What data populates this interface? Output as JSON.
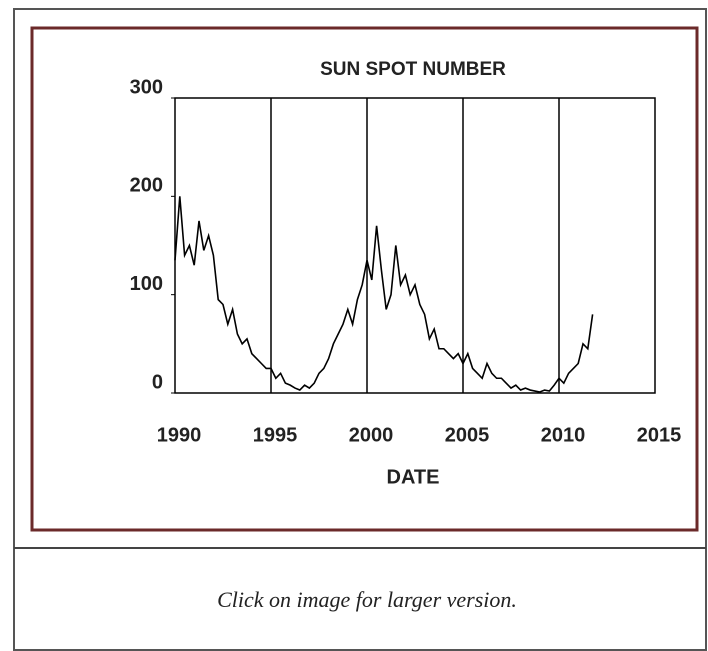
{
  "chart_data": {
    "type": "line",
    "title": "SUN SPOT NUMBER",
    "x_label": "DATE",
    "x": [
      1990,
      1990.25,
      1990.5,
      1990.75,
      1991,
      1991.25,
      1991.5,
      1991.75,
      1992,
      1992.25,
      1992.5,
      1992.75,
      1993,
      1993.25,
      1993.5,
      1993.75,
      1994,
      1994.25,
      1994.5,
      1994.75,
      1995,
      1995.25,
      1995.5,
      1995.75,
      1996,
      1996.25,
      1996.5,
      1996.75,
      1997,
      1997.25,
      1997.5,
      1997.75,
      1998,
      1998.25,
      1998.5,
      1998.75,
      1999,
      1999.25,
      1999.5,
      1999.75,
      2000,
      2000.25,
      2000.5,
      2000.75,
      2001,
      2001.25,
      2001.5,
      2001.75,
      2002,
      2002.25,
      2002.5,
      2002.75,
      2003,
      2003.25,
      2003.5,
      2003.75,
      2004,
      2004.25,
      2004.5,
      2004.75,
      2005,
      2005.25,
      2005.5,
      2005.75,
      2006,
      2006.25,
      2006.5,
      2006.75,
      2007,
      2007.25,
      2007.5,
      2007.75,
      2008,
      2008.25,
      2008.5,
      2008.75,
      2009,
      2009.25,
      2009.5,
      2009.75,
      2010,
      2010.25,
      2010.5,
      2010.75,
      2011,
      2011.25,
      2011.5,
      2011.75
    ],
    "series": [
      {
        "name": "Sunspot number",
        "color": "#000000",
        "values": [
          135,
          200,
          140,
          150,
          130,
          175,
          145,
          160,
          140,
          95,
          90,
          70,
          85,
          60,
          50,
          55,
          40,
          35,
          30,
          25,
          25,
          15,
          20,
          10,
          8,
          5,
          3,
          8,
          5,
          10,
          20,
          25,
          35,
          50,
          60,
          70,
          85,
          70,
          95,
          110,
          135,
          115,
          170,
          125,
          85,
          100,
          150,
          110,
          120,
          100,
          110,
          90,
          80,
          55,
          65,
          45,
          45,
          40,
          35,
          40,
          30,
          40,
          25,
          20,
          15,
          30,
          20,
          15,
          15,
          10,
          5,
          8,
          3,
          5,
          3,
          2,
          1,
          3,
          2,
          8,
          15,
          10,
          20,
          25,
          30,
          50,
          45,
          80
        ]
      }
    ],
    "xlim": [
      1990,
      2015
    ],
    "xticks": [
      1990,
      1995,
      2000,
      2005,
      2010,
      2015
    ],
    "ylim": [
      0,
      300
    ],
    "yticks": [
      0,
      100,
      200,
      300
    ],
    "grid": true
  },
  "caption": "Click on image for larger version."
}
